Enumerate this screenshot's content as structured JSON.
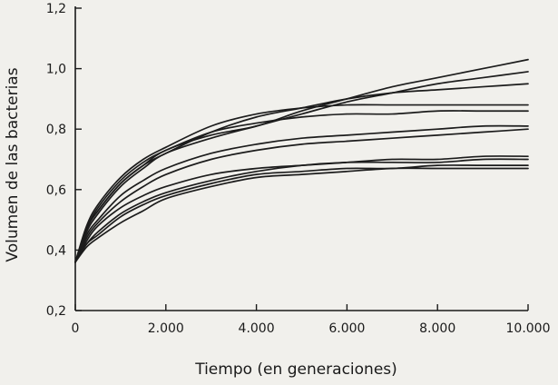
{
  "chart_data": {
    "type": "line",
    "title": "",
    "xlabel": "Tiempo (en generaciones)",
    "ylabel": "Volumen de las bacterias",
    "xlim": [
      0,
      10000
    ],
    "ylim": [
      0.2,
      1.2
    ],
    "x_ticks": [
      0,
      2000,
      4000,
      6000,
      8000,
      10000
    ],
    "x_tick_labels": [
      "0",
      "2.000",
      "4.000",
      "6.000",
      "8.000",
      "10.000"
    ],
    "y_ticks": [
      0.2,
      0.4,
      0.6,
      0.8,
      1.0,
      1.2
    ],
    "y_tick_labels": [
      "0,2",
      "0,4",
      "0,6",
      "0,8",
      "1,0",
      "1,2"
    ],
    "grid": false,
    "legend": "none",
    "x": [
      0,
      250,
      500,
      1000,
      1500,
      2000,
      3000,
      4000,
      5000,
      6000,
      7000,
      8000,
      9000,
      10000
    ],
    "series": [
      {
        "values": [
          0.36,
          0.47,
          0.53,
          0.62,
          0.68,
          0.73,
          0.78,
          0.81,
          0.86,
          0.9,
          0.94,
          0.97,
          1.0,
          1.03
        ]
      },
      {
        "values": [
          0.36,
          0.46,
          0.52,
          0.61,
          0.67,
          0.72,
          0.77,
          0.81,
          0.85,
          0.89,
          0.92,
          0.95,
          0.97,
          0.99
        ]
      },
      {
        "values": [
          0.36,
          0.47,
          0.53,
          0.62,
          0.68,
          0.72,
          0.79,
          0.84,
          0.87,
          0.9,
          0.92,
          0.93,
          0.94,
          0.95
        ]
      },
      {
        "values": [
          0.36,
          0.48,
          0.55,
          0.64,
          0.7,
          0.74,
          0.81,
          0.85,
          0.87,
          0.88,
          0.88,
          0.88,
          0.88,
          0.88
        ]
      },
      {
        "values": [
          0.36,
          0.47,
          0.54,
          0.63,
          0.69,
          0.73,
          0.79,
          0.82,
          0.84,
          0.85,
          0.85,
          0.86,
          0.86,
          0.86
        ]
      },
      {
        "values": [
          0.36,
          0.45,
          0.5,
          0.58,
          0.63,
          0.67,
          0.72,
          0.75,
          0.77,
          0.78,
          0.79,
          0.8,
          0.81,
          0.81
        ]
      },
      {
        "values": [
          0.36,
          0.44,
          0.49,
          0.56,
          0.61,
          0.65,
          0.7,
          0.73,
          0.75,
          0.76,
          0.77,
          0.78,
          0.79,
          0.8
        ]
      },
      {
        "values": [
          0.36,
          0.43,
          0.48,
          0.54,
          0.58,
          0.61,
          0.65,
          0.67,
          0.68,
          0.69,
          0.7,
          0.7,
          0.71,
          0.71
        ]
      },
      {
        "values": [
          0.36,
          0.42,
          0.46,
          0.52,
          0.56,
          0.59,
          0.63,
          0.66,
          0.68,
          0.69,
          0.69,
          0.69,
          0.7,
          0.7
        ]
      },
      {
        "values": [
          0.36,
          0.42,
          0.45,
          0.51,
          0.55,
          0.58,
          0.62,
          0.65,
          0.66,
          0.67,
          0.67,
          0.68,
          0.68,
          0.68
        ]
      },
      {
        "values": [
          0.36,
          0.41,
          0.44,
          0.49,
          0.53,
          0.57,
          0.61,
          0.64,
          0.65,
          0.66,
          0.67,
          0.67,
          0.67,
          0.67
        ]
      }
    ]
  }
}
